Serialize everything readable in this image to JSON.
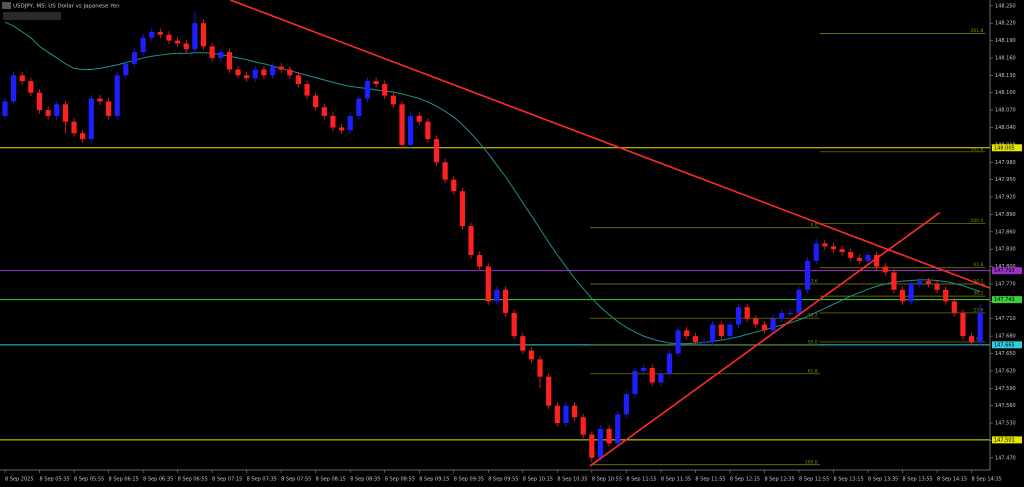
{
  "chart_data": {
    "type": "candlestick",
    "title": "USDJPY, M5:  US Dollar vs Japanese Yen",
    "up_color": "#1e1eff",
    "down_color": "#ff2020",
    "categories": [
      "8 Sep 2025",
      null,
      null,
      null,
      "8 Sep 05:35",
      null,
      null,
      null,
      "8 Sep 05:55",
      null,
      null,
      null,
      "8 Sep 06:15",
      null,
      null,
      null,
      "8 Sep 06:35",
      null,
      null,
      null,
      "8 Sep 06:55",
      null,
      null,
      null,
      "8 Sep 07:15",
      null,
      null,
      null,
      "8 Sep 07:35",
      null,
      null,
      null,
      "8 Sep 07:55",
      null,
      null,
      null,
      "8 Sep 08:15",
      null,
      null,
      null,
      "8 Sep 08:35",
      null,
      null,
      null,
      "8 Sep 08:55",
      null,
      null,
      null,
      "8 Sep 09:15",
      null,
      null,
      null,
      "8 Sep 09:35",
      null,
      null,
      null,
      "8 Sep 09:55",
      null,
      null,
      null,
      "8 Sep 10:15",
      null,
      null,
      null,
      "8 Sep 10:35",
      null,
      null,
      null,
      "8 Sep 10:55",
      null,
      null,
      null,
      "8 Sep 11:15",
      null,
      null,
      null,
      "8 Sep 11:35",
      null,
      null,
      null,
      "8 Sep 11:55",
      null,
      null,
      null,
      "8 Sep 12:15",
      null,
      null,
      null,
      "8 Sep 12:35",
      null,
      null,
      null,
      "8 Sep 12:55",
      null,
      null,
      null,
      "8 Sep 13:15",
      null,
      null,
      null,
      "8 Sep 13:35",
      null,
      null,
      null,
      "8 Sep 13:55",
      null,
      null,
      null,
      "8 Sep 14:15",
      null,
      null,
      null,
      "8 Sep 14:35",
      null
    ],
    "open": [
      148.06,
      148.085,
      148.13,
      148.12,
      148.1,
      148.07,
      148.06,
      148.08,
      148.05,
      148.03,
      148.02,
      148.09,
      148.085,
      148.06,
      148.13,
      148.15,
      148.17,
      148.195,
      148.205,
      148.2,
      148.19,
      148.185,
      148.175,
      148.22,
      148.18,
      148.16,
      148.17,
      148.14,
      148.13,
      148.125,
      148.14,
      148.13,
      148.145,
      148.14,
      148.13,
      148.115,
      148.095,
      148.075,
      148.06,
      148.04,
      148.035,
      148.06,
      148.09,
      148.12,
      148.115,
      148.095,
      148.08,
      148.01,
      148.06,
      148.05,
      148.02,
      147.98,
      147.95,
      147.93,
      147.87,
      147.82,
      147.8,
      147.74,
      147.76,
      147.72,
      147.68,
      147.655,
      147.64,
      147.61,
      147.56,
      147.53,
      147.56,
      147.54,
      147.51,
      147.47,
      147.52,
      147.495,
      147.545,
      147.58,
      147.62,
      147.625,
      147.6,
      147.615,
      147.65,
      147.69,
      147.68,
      147.67,
      147.67,
      147.7,
      147.68,
      147.7,
      147.73,
      147.71,
      147.7,
      147.69,
      147.71,
      147.72,
      147.72,
      147.76,
      147.81,
      147.84,
      147.835,
      147.83,
      147.825,
      147.815,
      147.81,
      147.82,
      147.8,
      147.79,
      147.76,
      147.74,
      147.77,
      147.775,
      147.77,
      147.76,
      147.74,
      147.72,
      147.68,
      147.67
    ],
    "high": [
      148.091,
      148.136,
      148.136,
      148.126,
      148.106,
      148.076,
      148.086,
      148.086,
      148.056,
      148.036,
      148.096,
      148.096,
      148.091,
      148.136,
      148.156,
      148.176,
      148.201,
      148.211,
      148.211,
      148.206,
      148.196,
      148.191,
      148.24,
      148.226,
      148.186,
      148.176,
      148.176,
      148.146,
      148.136,
      148.146,
      148.146,
      148.151,
      148.151,
      148.146,
      148.136,
      148.121,
      148.101,
      148.081,
      148.066,
      148.046,
      148.066,
      148.096,
      148.126,
      148.126,
      148.121,
      148.101,
      148.086,
      148.066,
      148.066,
      148.056,
      148.026,
      147.986,
      147.956,
      147.936,
      147.876,
      147.826,
      147.806,
      147.766,
      147.766,
      147.726,
      147.686,
      147.661,
      147.646,
      147.616,
      147.566,
      147.566,
      147.566,
      147.546,
      147.516,
      147.526,
      147.526,
      147.551,
      147.586,
      147.626,
      147.631,
      147.631,
      147.621,
      147.656,
      147.696,
      147.696,
      147.686,
      147.676,
      147.706,
      147.706,
      147.706,
      147.736,
      147.736,
      147.716,
      147.706,
      147.716,
      147.726,
      147.726,
      147.766,
      147.816,
      147.848,
      147.846,
      147.841,
      147.836,
      147.831,
      147.821,
      147.826,
      147.826,
      147.806,
      147.796,
      147.766,
      147.776,
      147.781,
      147.781,
      147.776,
      147.766,
      147.746,
      147.726,
      147.686,
      147.736
    ],
    "low": [
      148.054,
      148.079,
      148.114,
      148.094,
      148.064,
      148.054,
      148.054,
      148.03,
      148.024,
      148.014,
      148.014,
      148.079,
      148.054,
      148.054,
      148.124,
      148.144,
      148.164,
      148.189,
      148.194,
      148.184,
      148.179,
      148.169,
      148.169,
      148.174,
      148.154,
      148.154,
      148.134,
      148.124,
      148.119,
      148.119,
      148.124,
      148.124,
      148.134,
      148.124,
      148.109,
      148.089,
      148.069,
      148.054,
      148.034,
      148.029,
      148.029,
      148.054,
      148.084,
      148.109,
      148.089,
      148.074,
      148.004,
      148.004,
      148.044,
      148.014,
      147.974,
      147.944,
      147.924,
      147.864,
      147.814,
      147.794,
      147.734,
      147.734,
      147.714,
      147.674,
      147.649,
      147.634,
      147.59,
      147.554,
      147.524,
      147.524,
      147.534,
      147.504,
      147.462,
      147.464,
      147.489,
      147.489,
      147.539,
      147.574,
      147.614,
      147.594,
      147.594,
      147.609,
      147.644,
      147.674,
      147.664,
      147.664,
      147.664,
      147.674,
      147.674,
      147.694,
      147.704,
      147.694,
      147.684,
      147.684,
      147.704,
      147.714,
      147.714,
      147.754,
      147.804,
      147.829,
      147.824,
      147.819,
      147.809,
      147.804,
      147.804,
      147.794,
      147.784,
      147.754,
      147.734,
      147.734,
      147.764,
      147.764,
      147.754,
      147.734,
      147.714,
      147.674,
      147.664,
      147.664
    ],
    "close": [
      148.085,
      148.13,
      148.12,
      148.1,
      148.07,
      148.06,
      148.08,
      148.05,
      148.03,
      148.02,
      148.09,
      148.085,
      148.06,
      148.13,
      148.15,
      148.17,
      148.195,
      148.205,
      148.2,
      148.19,
      148.185,
      148.175,
      148.22,
      148.18,
      148.16,
      148.17,
      148.14,
      148.13,
      148.125,
      148.14,
      148.13,
      148.145,
      148.14,
      148.13,
      148.115,
      148.095,
      148.075,
      148.06,
      148.04,
      148.035,
      148.06,
      148.09,
      148.12,
      148.115,
      148.095,
      148.08,
      148.01,
      148.06,
      148.05,
      148.02,
      147.98,
      147.95,
      147.93,
      147.87,
      147.82,
      147.8,
      147.74,
      147.76,
      147.72,
      147.68,
      147.655,
      147.64,
      147.61,
      147.56,
      147.53,
      147.56,
      147.54,
      147.51,
      147.47,
      147.52,
      147.495,
      147.545,
      147.58,
      147.62,
      147.625,
      147.6,
      147.615,
      147.65,
      147.69,
      147.68,
      147.67,
      147.67,
      147.7,
      147.68,
      147.7,
      147.73,
      147.71,
      147.7,
      147.69,
      147.71,
      147.72,
      147.72,
      147.76,
      147.81,
      147.84,
      147.835,
      147.83,
      147.825,
      147.815,
      147.81,
      147.82,
      147.8,
      147.79,
      147.76,
      147.74,
      147.77,
      147.775,
      147.77,
      147.76,
      147.74,
      147.72,
      147.68,
      147.67,
      147.72
    ],
    "ma": {
      "color": "#1f9090",
      "values": [
        148.222,
        148.215,
        148.205,
        148.195,
        148.18,
        148.17,
        148.16,
        148.15,
        148.142,
        148.14,
        148.14,
        148.142,
        148.145,
        148.148,
        148.152,
        148.156,
        148.16,
        148.163,
        148.165,
        148.167,
        148.168,
        148.168,
        148.169,
        148.169,
        148.168,
        148.166,
        148.163,
        148.16,
        148.157,
        148.153,
        148.15,
        148.146,
        148.142,
        148.138,
        148.134,
        148.13,
        148.126,
        148.122,
        148.118,
        148.114,
        148.111,
        148.109,
        148.107,
        148.105,
        148.103,
        148.101,
        148.098,
        148.094,
        148.09,
        148.084,
        148.077,
        148.068,
        148.058,
        148.045,
        148.03,
        148.013,
        147.995,
        147.975,
        147.955,
        147.933,
        147.91,
        147.888,
        147.865,
        147.842,
        147.82,
        147.8,
        147.78,
        147.762,
        147.745,
        147.73,
        147.717,
        147.705,
        147.695,
        147.687,
        147.68,
        147.675,
        147.671,
        147.668,
        147.667,
        147.667,
        147.668,
        147.669,
        147.671,
        147.673,
        147.676,
        147.679,
        147.683,
        147.687,
        147.691,
        147.695,
        147.699,
        147.703,
        147.708,
        147.714,
        147.721,
        147.728,
        147.735,
        147.742,
        147.749,
        147.755,
        147.761,
        147.766,
        147.77,
        147.773,
        147.775,
        147.776,
        147.777,
        147.777,
        147.776,
        147.774,
        147.771,
        147.767,
        147.762,
        147.757
      ]
    },
    "ylim": [
      147.449,
      148.26
    ],
    "yticks": [
      {
        "value": 148.25,
        "label": "148.250"
      },
      {
        "value": 148.22,
        "label": "148.220"
      },
      {
        "value": 148.19,
        "label": "148.190"
      },
      {
        "value": 148.16,
        "label": "148.160"
      },
      {
        "value": 148.13,
        "label": "148.130"
      },
      {
        "value": 148.1,
        "label": "148.100"
      },
      {
        "value": 148.07,
        "label": "148.070"
      },
      {
        "value": 148.04,
        "label": "148.040"
      },
      {
        "value": 148.01,
        "label": "148.010"
      },
      {
        "value": 147.98,
        "label": "147.980"
      },
      {
        "value": 147.95,
        "label": "147.950"
      },
      {
        "value": 147.92,
        "label": "147.920"
      },
      {
        "value": 147.89,
        "label": "147.890"
      },
      {
        "value": 147.86,
        "label": "147.860"
      },
      {
        "value": 147.83,
        "label": "147.830"
      },
      {
        "value": 147.8,
        "label": "147.800"
      },
      {
        "value": 147.77,
        "label": "147.770"
      },
      {
        "value": 147.74,
        "label": "147.740"
      },
      {
        "value": 147.71,
        "label": "147.710"
      },
      {
        "value": 147.68,
        "label": "147.680"
      },
      {
        "value": 147.65,
        "label": "147.650"
      },
      {
        "value": 147.62,
        "label": "147.620"
      },
      {
        "value": 147.59,
        "label": "147.590"
      },
      {
        "value": 147.56,
        "label": "147.560"
      },
      {
        "value": 147.53,
        "label": "147.530"
      },
      {
        "value": 147.5,
        "label": "147.500"
      },
      {
        "value": 147.47,
        "label": "147.470"
      }
    ],
    "levels": [
      {
        "value": 148.005,
        "label": "148.005",
        "color": "#e6e600"
      },
      {
        "value": 147.793,
        "label": "147.793",
        "color": "#9b30c8"
      },
      {
        "value": 147.743,
        "label": "147.743",
        "color": "#3ccf3c"
      },
      {
        "value": 147.665,
        "label": "147.665",
        "color": "#30d0e0"
      },
      {
        "value": 147.501,
        "label": "147.501",
        "color": "#e6e600"
      }
    ],
    "trendlines": [
      {
        "color": "#ff2a2a",
        "x": [
          26.1,
          114.1
        ],
        "y": [
          148.26,
          147.763
        ]
      },
      {
        "color": "#ff2a2a",
        "x": [
          67.8,
          108.3
        ],
        "y": [
          147.456,
          147.893
        ]
      }
    ],
    "fibs": [
      {
        "color": "#8c8c00",
        "x": [
          67.8,
          94.4
        ],
        "levels": [
          {
            "label": "0.0",
            "value": 147.867
          },
          {
            "label": "23.6",
            "value": 147.77
          },
          {
            "label": "38.2",
            "value": 147.711
          },
          {
            "label": "50.0",
            "value": 147.665
          },
          {
            "label": "61.8",
            "value": 147.615
          },
          {
            "label": "100.0",
            "value": 147.458
          }
        ]
      },
      {
        "color": "#8c8c00",
        "x": [
          94.4,
          113.6
        ],
        "levels": [
          {
            "label": "261.8",
            "value": 148.202
          },
          {
            "label": "161.8",
            "value": 147.998
          },
          {
            "label": "100.0",
            "value": 147.874
          },
          {
            "label": "61.8",
            "value": 147.798
          },
          {
            "label": "50.0",
            "value": 147.77
          },
          {
            "label": "38.2",
            "value": 147.749
          },
          {
            "label": "23.6",
            "value": 147.72
          },
          {
            "label": "0.0",
            "value": 147.67
          }
        ]
      }
    ]
  }
}
